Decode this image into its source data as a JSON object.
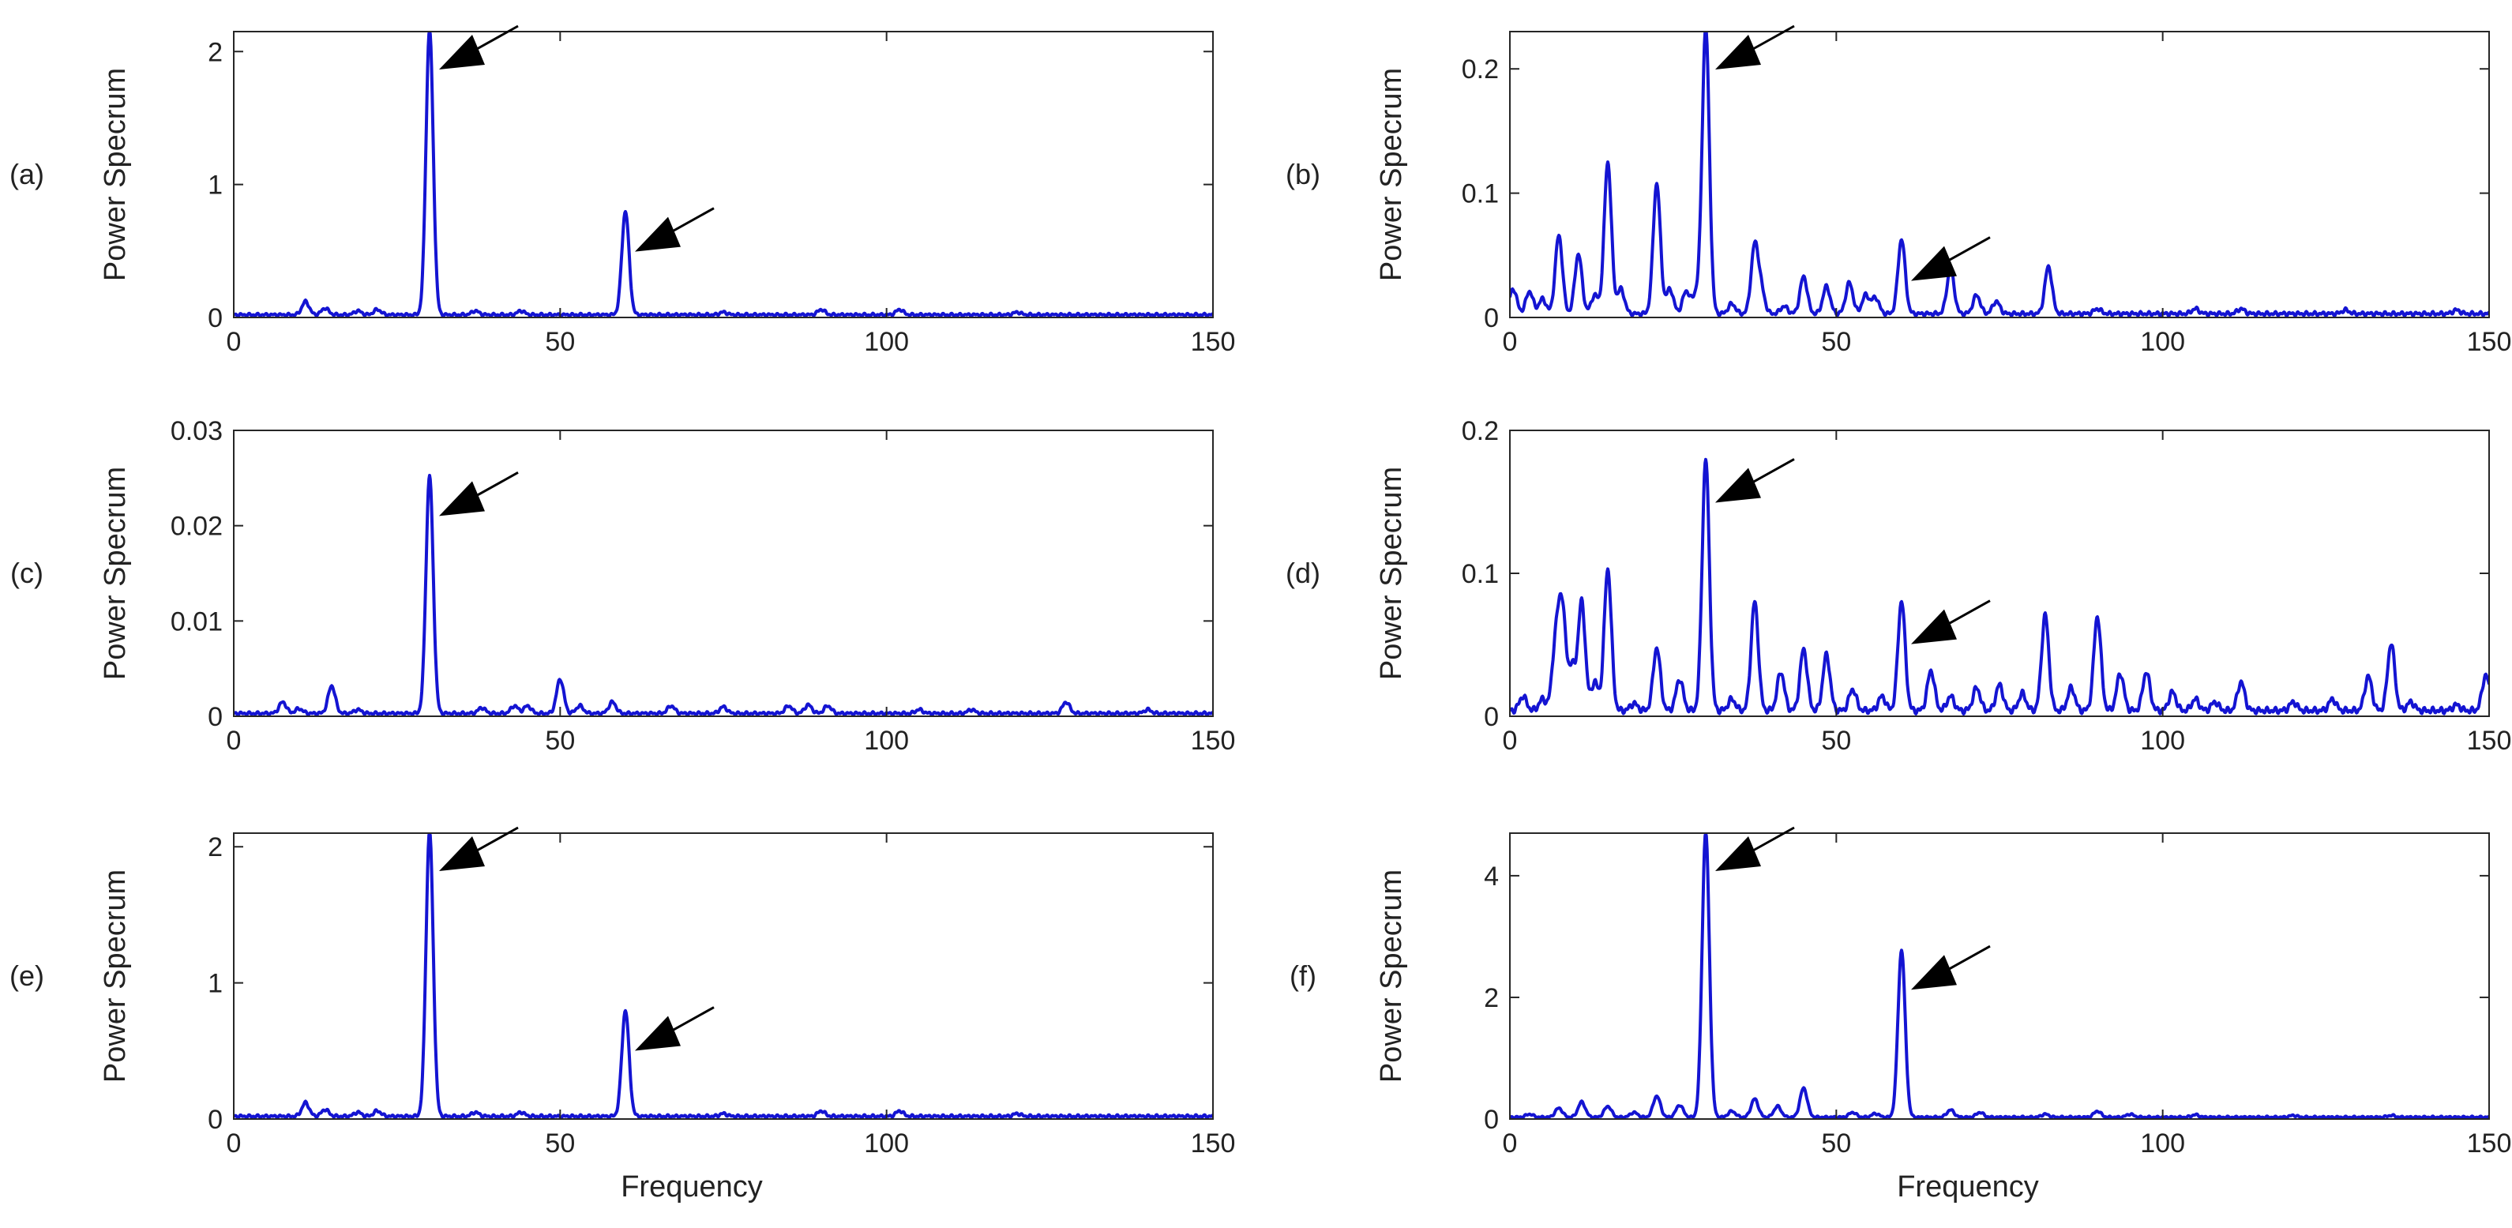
{
  "figure": {
    "description_free": true
  },
  "colors": {
    "line": "#1414d2",
    "axis": "#262626",
    "arrow": "#000000"
  },
  "chart_data": [
    {
      "type": "line",
      "panel_label": "(a)",
      "title": "",
      "xlabel": "",
      "ylabel": "Power Specrum",
      "xlim": [
        0,
        150
      ],
      "ylim": [
        0,
        2.15
      ],
      "xticks": [
        0,
        50,
        100,
        150
      ],
      "xtick_labels": [
        "0",
        "50",
        "100",
        "150"
      ],
      "yticks": [
        0,
        1,
        2
      ],
      "ytick_labels": [
        "0",
        "1",
        "2"
      ],
      "grid": false,
      "baseline": 0.02,
      "peaks": [
        {
          "x": 11,
          "y": 0.1
        },
        {
          "x": 14,
          "y": 0.05
        },
        {
          "x": 19,
          "y": 0.03
        },
        {
          "x": 22,
          "y": 0.04
        },
        {
          "x": 30,
          "y": 2.15
        },
        {
          "x": 37,
          "y": 0.03
        },
        {
          "x": 44,
          "y": 0.03
        },
        {
          "x": 60,
          "y": 0.78
        },
        {
          "x": 75,
          "y": 0.02
        },
        {
          "x": 90,
          "y": 0.04
        },
        {
          "x": 102,
          "y": 0.04
        },
        {
          "x": 120,
          "y": 0.02
        }
      ],
      "arrows": [
        {
          "x": 30,
          "y": 2.15
        },
        {
          "x": 60,
          "y": 0.78
        }
      ]
    },
    {
      "type": "line",
      "panel_label": "(b)",
      "title": "",
      "xlabel": "",
      "ylabel": "Power Specrum",
      "xlim": [
        0,
        150
      ],
      "ylim": [
        0,
        0.23
      ],
      "xticks": [
        0,
        50,
        100,
        150
      ],
      "xtick_labels": [
        "0",
        "50",
        "100",
        "150"
      ],
      "yticks": [
        0,
        0.1,
        0.2
      ],
      "ytick_labels": [
        "0",
        "0.1",
        "0.2"
      ],
      "grid": false,
      "baseline": 0.003,
      "peaks": [
        {
          "x": 0.5,
          "y": 0.02
        },
        {
          "x": 3,
          "y": 0.018
        },
        {
          "x": 5,
          "y": 0.012
        },
        {
          "x": 7.5,
          "y": 0.063
        },
        {
          "x": 10.5,
          "y": 0.048
        },
        {
          "x": 13,
          "y": 0.015
        },
        {
          "x": 15,
          "y": 0.122
        },
        {
          "x": 17,
          "y": 0.02
        },
        {
          "x": 22.5,
          "y": 0.105
        },
        {
          "x": 24.5,
          "y": 0.02
        },
        {
          "x": 27,
          "y": 0.018
        },
        {
          "x": 28.5,
          "y": 0.015
        },
        {
          "x": 30,
          "y": 0.23
        },
        {
          "x": 34,
          "y": 0.008
        },
        {
          "x": 37.5,
          "y": 0.054
        },
        {
          "x": 38.5,
          "y": 0.018
        },
        {
          "x": 42,
          "y": 0.006
        },
        {
          "x": 45,
          "y": 0.03
        },
        {
          "x": 48.5,
          "y": 0.022
        },
        {
          "x": 52,
          "y": 0.025
        },
        {
          "x": 54.5,
          "y": 0.015
        },
        {
          "x": 56,
          "y": 0.013
        },
        {
          "x": 60,
          "y": 0.06
        },
        {
          "x": 67.5,
          "y": 0.036
        },
        {
          "x": 71.5,
          "y": 0.015
        },
        {
          "x": 74.5,
          "y": 0.01
        },
        {
          "x": 82.5,
          "y": 0.038
        },
        {
          "x": 90,
          "y": 0.004
        },
        {
          "x": 105,
          "y": 0.004
        },
        {
          "x": 112,
          "y": 0.004
        },
        {
          "x": 128,
          "y": 0.003
        },
        {
          "x": 145,
          "y": 0.003
        }
      ],
      "arrows": [
        {
          "x": 30,
          "y": 0.23
        },
        {
          "x": 60,
          "y": 0.06
        }
      ]
    },
    {
      "type": "line",
      "panel_label": "(c)",
      "title": "",
      "xlabel": "",
      "ylabel": "Power Specrum",
      "xlim": [
        0,
        150
      ],
      "ylim": [
        0,
        0.03
      ],
      "xticks": [
        0,
        50,
        100,
        150
      ],
      "xtick_labels": [
        "0",
        "50",
        "100",
        "150"
      ],
      "yticks": [
        0,
        0.01,
        0.02,
        0.03
      ],
      "ytick_labels": [
        "0",
        "0.01",
        "0.02",
        "0.03"
      ],
      "grid": false,
      "baseline": 0.0003,
      "peaks": [
        {
          "x": 7.5,
          "y": 0.0012
        },
        {
          "x": 10,
          "y": 0.0005
        },
        {
          "x": 15,
          "y": 0.0029
        },
        {
          "x": 19,
          "y": 0.0004
        },
        {
          "x": 30,
          "y": 0.025
        },
        {
          "x": 38,
          "y": 0.0006
        },
        {
          "x": 43,
          "y": 0.0008
        },
        {
          "x": 45,
          "y": 0.0008
        },
        {
          "x": 50,
          "y": 0.0036
        },
        {
          "x": 53,
          "y": 0.0008
        },
        {
          "x": 58,
          "y": 0.0012
        },
        {
          "x": 67,
          "y": 0.0008
        },
        {
          "x": 75,
          "y": 0.0007
        },
        {
          "x": 85,
          "y": 0.0008
        },
        {
          "x": 88,
          "y": 0.0009
        },
        {
          "x": 91,
          "y": 0.0008
        },
        {
          "x": 105,
          "y": 0.0004
        },
        {
          "x": 113,
          "y": 0.0004
        },
        {
          "x": 127.5,
          "y": 0.0012
        },
        {
          "x": 140,
          "y": 0.0004
        }
      ],
      "arrows": [
        {
          "x": 30,
          "y": 0.025
        }
      ]
    },
    {
      "type": "line",
      "panel_label": "(d)",
      "title": "",
      "xlabel": "",
      "ylabel": "Power Specrum",
      "xlim": [
        0,
        150
      ],
      "ylim": [
        0,
        0.2
      ],
      "xticks": [
        0,
        50,
        100,
        150
      ],
      "xtick_labels": [
        "0",
        "50",
        "100",
        "150"
      ],
      "yticks": [
        0,
        0.1,
        0.2
      ],
      "ytick_labels": [
        "0",
        "0.1",
        "0.2"
      ],
      "grid": false,
      "baseline": 0.004,
      "peaks": [
        {
          "x": 2,
          "y": 0.01
        },
        {
          "x": 5,
          "y": 0.008
        },
        {
          "x": 7,
          "y": 0.045
        },
        {
          "x": 8,
          "y": 0.071
        },
        {
          "x": 9.5,
          "y": 0.03
        },
        {
          "x": 11,
          "y": 0.076
        },
        {
          "x": 13,
          "y": 0.02
        },
        {
          "x": 15,
          "y": 0.099
        },
        {
          "x": 19,
          "y": 0.005
        },
        {
          "x": 22.5,
          "y": 0.044
        },
        {
          "x": 26,
          "y": 0.022
        },
        {
          "x": 30,
          "y": 0.176
        },
        {
          "x": 34,
          "y": 0.008
        },
        {
          "x": 37.5,
          "y": 0.076
        },
        {
          "x": 41.5,
          "y": 0.027
        },
        {
          "x": 45,
          "y": 0.043
        },
        {
          "x": 48.5,
          "y": 0.039
        },
        {
          "x": 52.5,
          "y": 0.015
        },
        {
          "x": 57,
          "y": 0.01
        },
        {
          "x": 60,
          "y": 0.077
        },
        {
          "x": 64.5,
          "y": 0.028
        },
        {
          "x": 67.5,
          "y": 0.01
        },
        {
          "x": 71.5,
          "y": 0.016
        },
        {
          "x": 75,
          "y": 0.018
        },
        {
          "x": 78.5,
          "y": 0.012
        },
        {
          "x": 82,
          "y": 0.067
        },
        {
          "x": 86,
          "y": 0.016
        },
        {
          "x": 90,
          "y": 0.066
        },
        {
          "x": 93.5,
          "y": 0.026
        },
        {
          "x": 97.5,
          "y": 0.027
        },
        {
          "x": 101.5,
          "y": 0.013
        },
        {
          "x": 105,
          "y": 0.008
        },
        {
          "x": 108,
          "y": 0.006
        },
        {
          "x": 112,
          "y": 0.02
        },
        {
          "x": 120,
          "y": 0.006
        },
        {
          "x": 126,
          "y": 0.008
        },
        {
          "x": 131.5,
          "y": 0.024
        },
        {
          "x": 135,
          "y": 0.047
        },
        {
          "x": 138,
          "y": 0.006
        },
        {
          "x": 145,
          "y": 0.004
        },
        {
          "x": 149.5,
          "y": 0.025
        }
      ],
      "arrows": [
        {
          "x": 30,
          "y": 0.176
        },
        {
          "x": 60,
          "y": 0.077
        }
      ]
    },
    {
      "type": "line",
      "panel_label": "(e)",
      "title": "",
      "xlabel": "Frequency",
      "ylabel": "Power Specrum",
      "xlim": [
        0,
        150
      ],
      "ylim": [
        0,
        2.1
      ],
      "xticks": [
        0,
        50,
        100,
        150
      ],
      "xtick_labels": [
        "0",
        "50",
        "100",
        "150"
      ],
      "yticks": [
        0,
        1,
        2
      ],
      "ytick_labels": [
        "0",
        "1",
        "2"
      ],
      "grid": false,
      "baseline": 0.02,
      "peaks": [
        {
          "x": 11,
          "y": 0.1
        },
        {
          "x": 14,
          "y": 0.05
        },
        {
          "x": 19,
          "y": 0.03
        },
        {
          "x": 22,
          "y": 0.04
        },
        {
          "x": 30,
          "y": 2.1
        },
        {
          "x": 37,
          "y": 0.03
        },
        {
          "x": 44,
          "y": 0.03
        },
        {
          "x": 60,
          "y": 0.78
        },
        {
          "x": 75,
          "y": 0.02
        },
        {
          "x": 90,
          "y": 0.04
        },
        {
          "x": 102,
          "y": 0.04
        },
        {
          "x": 120,
          "y": 0.02
        }
      ],
      "arrows": [
        {
          "x": 30,
          "y": 2.1
        },
        {
          "x": 60,
          "y": 0.78
        }
      ]
    },
    {
      "type": "line",
      "panel_label": "(f)",
      "title": "",
      "xlabel": "Frequency",
      "ylabel": "Power Specrum",
      "xlim": [
        0,
        150
      ],
      "ylim": [
        0,
        4.7
      ],
      "xticks": [
        0,
        50,
        100,
        150
      ],
      "xtick_labels": [
        "0",
        "50",
        "100",
        "150"
      ],
      "yticks": [
        0,
        2,
        4
      ],
      "ytick_labels": [
        "0",
        "2",
        "4"
      ],
      "grid": false,
      "baseline": 0.03,
      "peaks": [
        {
          "x": 3,
          "y": 0.05
        },
        {
          "x": 7.5,
          "y": 0.15
        },
        {
          "x": 11,
          "y": 0.25
        },
        {
          "x": 15,
          "y": 0.18
        },
        {
          "x": 19,
          "y": 0.08
        },
        {
          "x": 22.5,
          "y": 0.35
        },
        {
          "x": 26,
          "y": 0.2
        },
        {
          "x": 30,
          "y": 4.7
        },
        {
          "x": 34,
          "y": 0.1
        },
        {
          "x": 37.5,
          "y": 0.3
        },
        {
          "x": 41,
          "y": 0.18
        },
        {
          "x": 45,
          "y": 0.48
        },
        {
          "x": 52.5,
          "y": 0.08
        },
        {
          "x": 56,
          "y": 0.06
        },
        {
          "x": 60,
          "y": 2.75
        },
        {
          "x": 67.5,
          "y": 0.12
        },
        {
          "x": 72,
          "y": 0.08
        },
        {
          "x": 82,
          "y": 0.05
        },
        {
          "x": 90,
          "y": 0.1
        },
        {
          "x": 95,
          "y": 0.05
        },
        {
          "x": 105,
          "y": 0.04
        },
        {
          "x": 120,
          "y": 0.03
        },
        {
          "x": 135,
          "y": 0.03
        }
      ],
      "arrows": [
        {
          "x": 30,
          "y": 4.7
        },
        {
          "x": 60,
          "y": 2.75
        }
      ]
    }
  ]
}
